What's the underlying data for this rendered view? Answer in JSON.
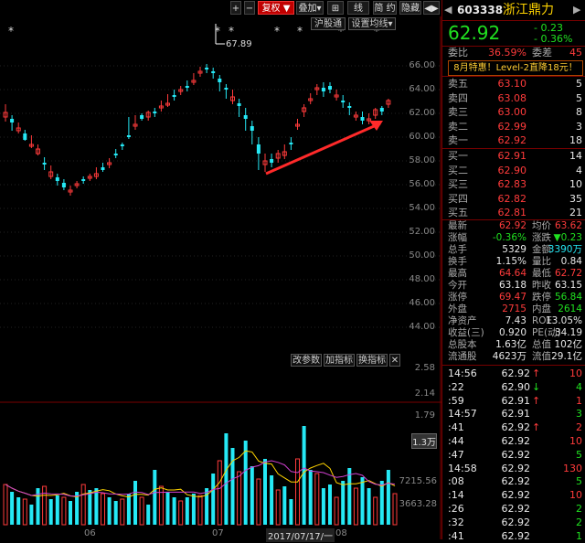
{
  "toolbar": {
    "plus": "+",
    "minus": "−",
    "fuquan": "复权",
    "overlay": "叠加",
    "grid_icon": "⊞",
    "xian": "线",
    "jianjiu": "简 约",
    "hide": "隐藏",
    "nav": "◀▶"
  },
  "top_buttons": {
    "hgt": "沪股通",
    "ma_settings": "设置均线"
  },
  "price_axis": [
    "66.00",
    "64.00",
    "62.00",
    "60.00",
    "58.00",
    "56.00",
    "54.00",
    "52.00",
    "50.00",
    "48.00",
    "46.00",
    "44.00"
  ],
  "peak_label": "67.89",
  "sub_buttons": {
    "change_params": "改参数",
    "add_indicator": "加指标",
    "switch_indicator": "换指标",
    "close": "✕"
  },
  "vol_axis": [
    "2.58",
    "2.14",
    "1.79",
    "1.3万",
    "7215.56",
    "3663.28"
  ],
  "vol_unit_label": "1.3万",
  "dates": [
    "06",
    "07",
    "2017/07/17/一",
    "08"
  ],
  "header": {
    "code": "603338",
    "name": "浙江鼎力",
    "price": "62.92",
    "change": "- 0.23",
    "change_pct": "- 0.36%"
  },
  "weibi": {
    "label": "委比",
    "value": "36.59%",
    "wc_label": "委差",
    "wc_value": "45"
  },
  "promo": "8月特惠！Level-2直降18元！",
  "sells": [
    {
      "label": "卖五",
      "price": "63.10",
      "vol": "5"
    },
    {
      "label": "卖四",
      "price": "63.08",
      "vol": "5"
    },
    {
      "label": "卖三",
      "price": "63.00",
      "vol": "8"
    },
    {
      "label": "卖二",
      "price": "62.99",
      "vol": "3"
    },
    {
      "label": "卖一",
      "price": "62.92",
      "vol": "18"
    }
  ],
  "buys": [
    {
      "label": "买一",
      "price": "62.91",
      "vol": "14"
    },
    {
      "label": "买二",
      "price": "62.90",
      "vol": "4"
    },
    {
      "label": "买三",
      "price": "62.83",
      "vol": "10"
    },
    {
      "label": "买四",
      "price": "62.82",
      "vol": "35"
    },
    {
      "label": "买五",
      "price": "62.81",
      "vol": "21"
    }
  ],
  "stats": [
    {
      "l1": "最新",
      "v1": "62.92",
      "l2": "均价",
      "v2": "63.62"
    },
    {
      "l1": "涨幅",
      "v1": "-0.36%",
      "l2": "涨跌",
      "v2": "▼0.23"
    },
    {
      "l1": "总手",
      "v1": "5329",
      "l2": "金额",
      "v2": "3390万"
    },
    {
      "l1": "换手",
      "v1": "1.15%",
      "l2": "量比",
      "v2": "0.84"
    },
    {
      "l1": "最高",
      "v1": "64.64",
      "l2": "最低",
      "v2": "62.72"
    },
    {
      "l1": "今开",
      "v1": "63.18",
      "l2": "昨收",
      "v2": "63.15"
    },
    {
      "l1": "涨停",
      "v1": "69.47",
      "l2": "跌停",
      "v2": "56.84"
    },
    {
      "l1": "外盘",
      "v1": "2715",
      "l2": "内盘",
      "v2": "2614"
    },
    {
      "l1": "净资产",
      "v1": "7.43",
      "l2": "ROE",
      "v2": "13.05%"
    },
    {
      "l1": "收益(三)",
      "v1": "0.920",
      "l2": "PE(动)",
      "v2": "34.19"
    },
    {
      "l1": "总股本",
      "v1": "1.63亿",
      "l2": "总值",
      "v2": "102亿"
    },
    {
      "l1": "流通股",
      "v1": "4623万",
      "l2": "流值",
      "v2": "29.1亿"
    }
  ],
  "ticks": [
    {
      "time": "14:56",
      "price": "62.92",
      "arrow": "↑",
      "vol": "10"
    },
    {
      "time": ":22",
      "price": "62.90",
      "arrow": "↓",
      "vol": "4"
    },
    {
      "time": ":59",
      "price": "62.91",
      "arrow": "↑",
      "vol": "1"
    },
    {
      "time": "14:57",
      "price": "62.91",
      "arrow": "",
      "vol": "3"
    },
    {
      "time": ":41",
      "price": "62.92",
      "arrow": "↑",
      "vol": "2"
    },
    {
      "time": ":44",
      "price": "62.92",
      "arrow": "",
      "vol": "10"
    },
    {
      "time": ":47",
      "price": "62.92",
      "arrow": "",
      "vol": "5"
    },
    {
      "time": "14:58",
      "price": "62.92",
      "arrow": "",
      "vol": "130"
    },
    {
      "time": ":08",
      "price": "62.92",
      "arrow": "",
      "vol": "5"
    },
    {
      "time": ":14",
      "price": "62.92",
      "arrow": "",
      "vol": "10"
    },
    {
      "time": ":26",
      "price": "62.92",
      "arrow": "",
      "vol": "2"
    },
    {
      "time": ":32",
      "price": "62.92",
      "arrow": "",
      "vol": "2"
    },
    {
      "time": ":41",
      "price": "62.92",
      "arrow": "",
      "vol": "1"
    }
  ],
  "colors": {
    "up": "#ff3b3b",
    "down": "#25e8f5",
    "arrow": "#ff2a2a",
    "ma1": "#ffd400",
    "ma2": "#d040d0",
    "border": "#7a0000"
  }
}
